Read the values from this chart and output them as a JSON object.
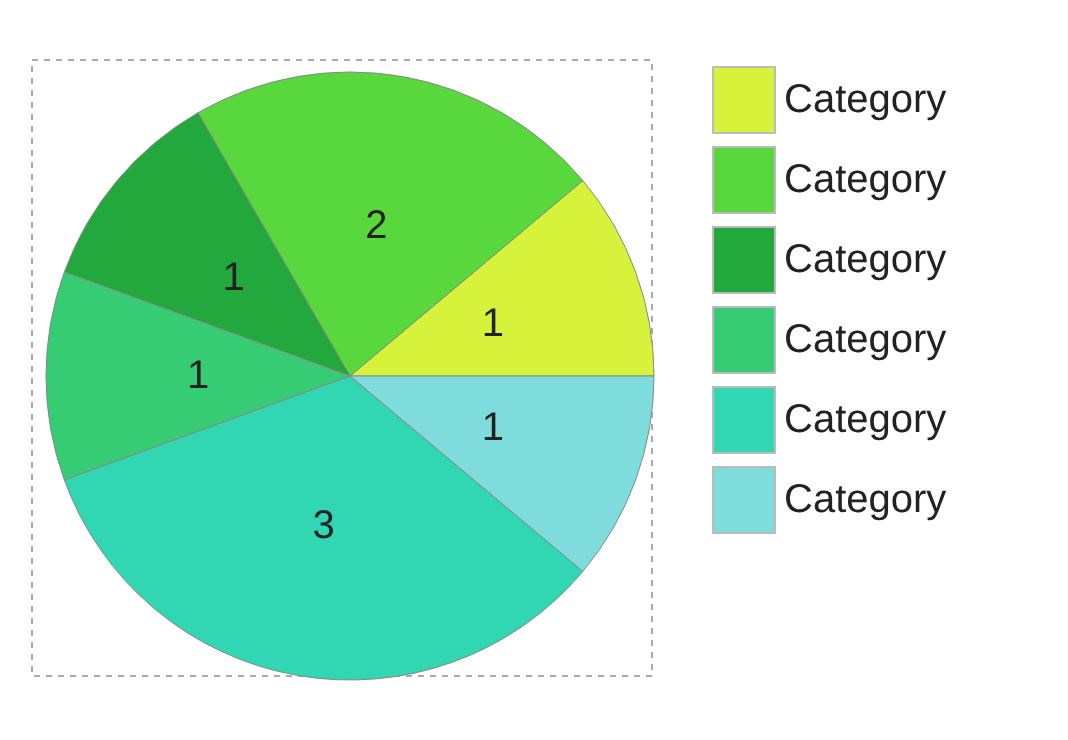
{
  "chart_data": {
    "type": "pie",
    "categories": [
      "Category",
      "Category",
      "Category",
      "Category",
      "Category",
      "Category"
    ],
    "values": [
      1,
      2,
      1,
      1,
      3,
      1
    ],
    "colors": [
      "#d7f23a",
      "#58d83c",
      "#22a83c",
      "#36cc74",
      "#31d6b2",
      "#7fdcdc"
    ],
    "data_labels": true,
    "legend": "right"
  }
}
